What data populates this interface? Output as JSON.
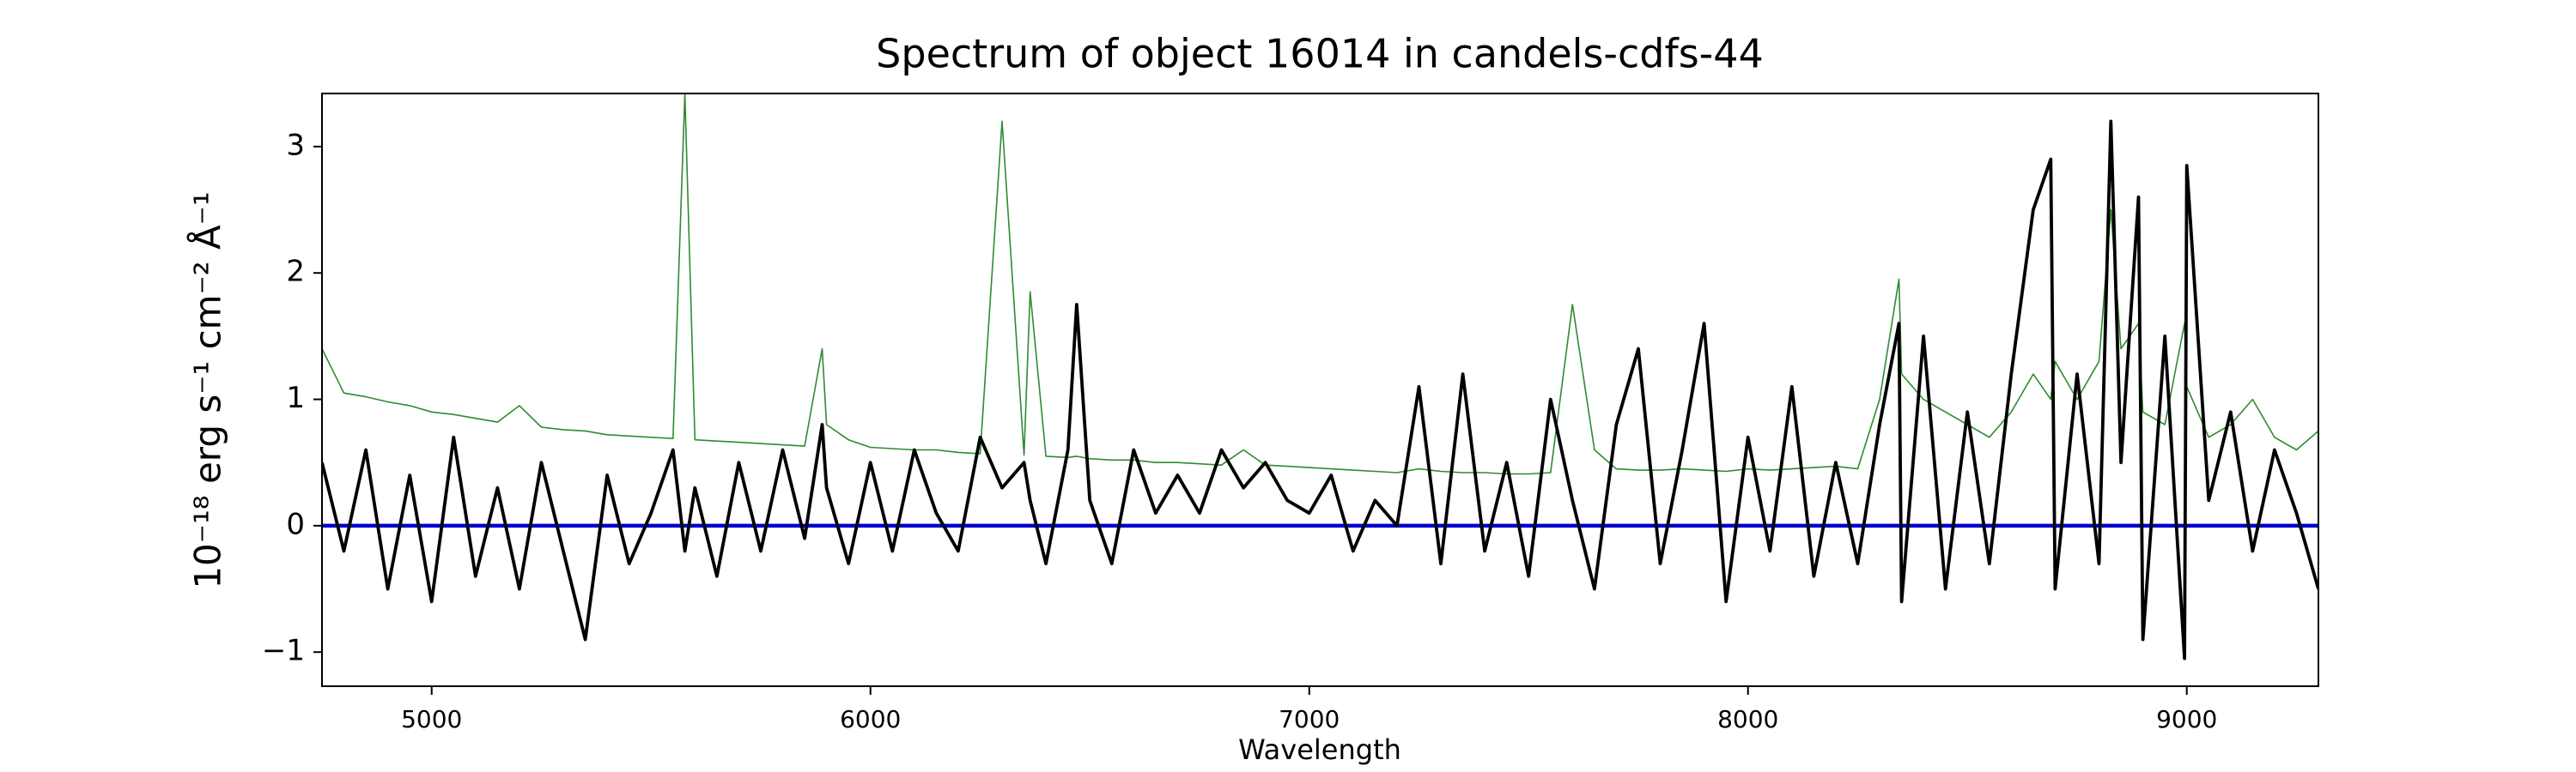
{
  "chart_data": {
    "type": "line",
    "title": "Spectrum of object 16014 in candels-cdfs-44",
    "xlabel": "Wavelength",
    "ylabel": "10⁻¹⁸ erg s⁻¹ cm⁻² Å⁻¹",
    "x": [
      4750,
      4800,
      4850,
      4900,
      4950,
      5000,
      5050,
      5100,
      5150,
      5200,
      5250,
      5300,
      5350,
      5400,
      5450,
      5500,
      5550,
      5577,
      5600,
      5650,
      5700,
      5750,
      5800,
      5850,
      5890,
      5900,
      5950,
      6000,
      6050,
      6100,
      6150,
      6200,
      6250,
      6300,
      6350,
      6364,
      6400,
      6450,
      6470,
      6500,
      6550,
      6600,
      6650,
      6700,
      6750,
      6800,
      6850,
      6900,
      6950,
      7000,
      7050,
      7100,
      7150,
      7200,
      7250,
      7300,
      7350,
      7400,
      7450,
      7500,
      7550,
      7600,
      7650,
      7700,
      7750,
      7800,
      7850,
      7900,
      7950,
      8000,
      8050,
      8100,
      8150,
      8200,
      8250,
      8300,
      8344,
      8350,
      8400,
      8450,
      8500,
      8550,
      8600,
      8650,
      8690,
      8700,
      8750,
      8800,
      8827,
      8850,
      8890,
      8900,
      8950,
      8995,
      9000,
      9050,
      9100,
      9150,
      9200,
      9250,
      9300
    ],
    "series": [
      {
        "color": "#2e8b2e",
        "values": [
          1.4,
          1.05,
          1.02,
          0.98,
          0.95,
          0.9,
          0.88,
          0.85,
          0.82,
          0.95,
          0.78,
          0.76,
          0.75,
          0.72,
          0.71,
          0.7,
          0.69,
          3.42,
          0.68,
          0.67,
          0.66,
          0.65,
          0.64,
          0.63,
          1.4,
          0.8,
          0.68,
          0.62,
          0.61,
          0.6,
          0.6,
          0.58,
          0.57,
          3.2,
          0.56,
          1.85,
          0.55,
          0.54,
          0.55,
          0.53,
          0.52,
          0.52,
          0.5,
          0.5,
          0.49,
          0.48,
          0.6,
          0.48,
          0.47,
          0.46,
          0.45,
          0.44,
          0.43,
          0.42,
          0.45,
          0.43,
          0.42,
          0.42,
          0.41,
          0.41,
          0.42,
          1.75,
          0.6,
          0.45,
          0.44,
          0.44,
          0.45,
          0.44,
          0.43,
          0.45,
          0.44,
          0.45,
          0.46,
          0.47,
          0.45,
          1.0,
          1.95,
          1.2,
          1.0,
          0.9,
          0.8,
          0.7,
          0.9,
          1.2,
          1.0,
          1.3,
          1.0,
          1.3,
          2.5,
          1.4,
          1.6,
          0.9,
          0.8,
          1.6,
          1.1,
          0.7,
          0.8,
          1.0,
          0.7,
          0.6,
          0.75
        ]
      },
      {
        "color": "#000000",
        "values": [
          0.5,
          -0.2,
          0.6,
          -0.5,
          0.4,
          -0.6,
          0.7,
          -0.4,
          0.3,
          -0.5,
          0.5,
          -0.2,
          -0.9,
          0.4,
          -0.3,
          0.1,
          0.6,
          -0.2,
          0.3,
          -0.4,
          0.5,
          -0.2,
          0.6,
          -0.1,
          0.8,
          0.3,
          -0.3,
          0.5,
          -0.2,
          0.6,
          0.1,
          -0.2,
          0.7,
          0.3,
          0.5,
          0.2,
          -0.3,
          0.6,
          1.75,
          0.2,
          -0.3,
          0.6,
          0.1,
          0.4,
          0.1,
          0.6,
          0.3,
          0.5,
          0.2,
          0.1,
          0.4,
          -0.2,
          0.2,
          0.0,
          1.1,
          -0.3,
          1.2,
          -0.2,
          0.5,
          -0.4,
          1.0,
          0.2,
          -0.5,
          0.8,
          1.4,
          -0.3,
          0.6,
          1.6,
          -0.6,
          0.7,
          -0.2,
          1.1,
          -0.4,
          0.5,
          -0.3,
          0.8,
          1.6,
          -0.6,
          1.5,
          -0.5,
          0.9,
          -0.3,
          1.2,
          2.5,
          2.9,
          -0.5,
          1.2,
          -0.3,
          3.2,
          0.5,
          2.6,
          -0.9,
          1.5,
          -1.05,
          2.85,
          0.2,
          0.9,
          -0.2,
          0.6,
          0.1,
          -0.5
        ]
      }
    ],
    "zero_line": {
      "value": 0,
      "color": "#0000cc"
    },
    "xlim": [
      4750,
      9300
    ],
    "ylim": [
      -1.27,
      3.42
    ],
    "xticks": [
      5000,
      6000,
      7000,
      8000,
      9000
    ],
    "yticks": [
      {
        "value": -1,
        "label": "−1"
      },
      0,
      1,
      2,
      3
    ],
    "grid": false
  }
}
